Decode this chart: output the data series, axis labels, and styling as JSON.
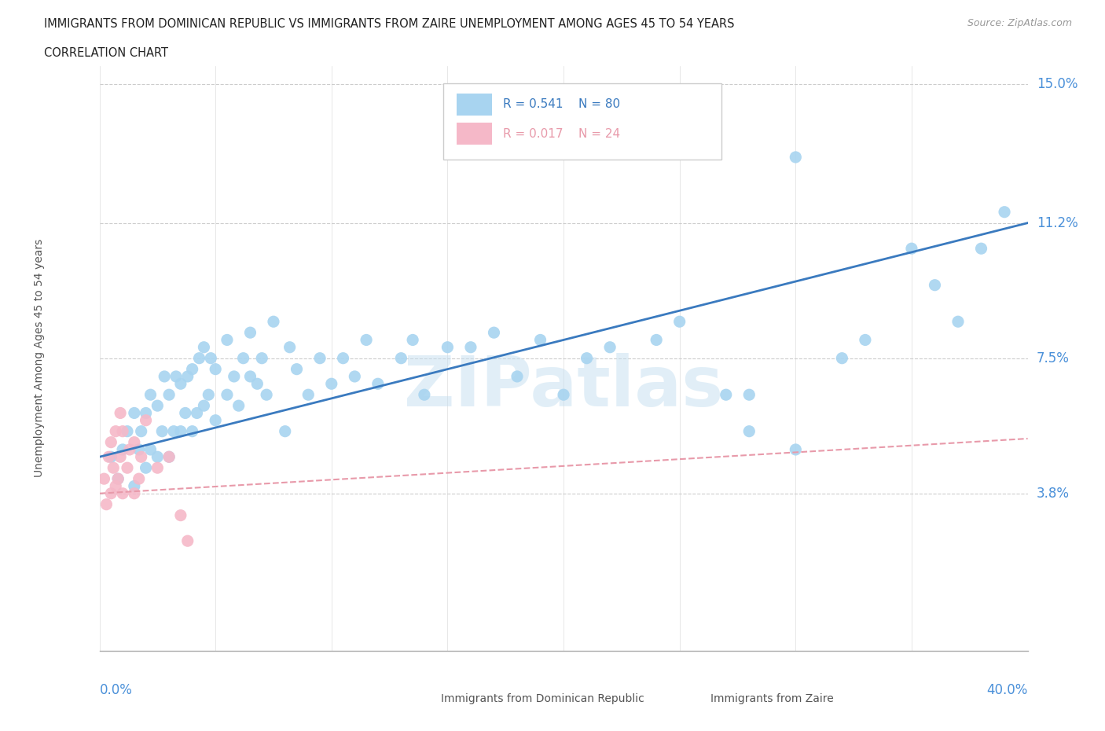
{
  "title_line1": "IMMIGRANTS FROM DOMINICAN REPUBLIC VS IMMIGRANTS FROM ZAIRE UNEMPLOYMENT AMONG AGES 45 TO 54 YEARS",
  "title_line2": "CORRELATION CHART",
  "source": "Source: ZipAtlas.com",
  "ylabel": "Unemployment Among Ages 45 to 54 years",
  "xlim": [
    0.0,
    0.4
  ],
  "ylim": [
    -0.005,
    0.155
  ],
  "ytick_values": [
    0.038,
    0.075,
    0.112,
    0.15
  ],
  "ytick_labels": [
    "3.8%",
    "7.5%",
    "11.2%",
    "15.0%"
  ],
  "blue_R": 0.541,
  "blue_N": 80,
  "pink_R": 0.017,
  "pink_N": 24,
  "blue_color": "#a8d4f0",
  "pink_color": "#f5b8c8",
  "blue_line_color": "#3a7abf",
  "pink_line_color": "#e89aaa",
  "label_color": "#4a90d9",
  "watermark": "ZIPatlas",
  "legend_label_blue": "Immigrants from Dominican Republic",
  "legend_label_pink": "Immigrants from Zaire",
  "blue_x": [
    0.005,
    0.008,
    0.01,
    0.012,
    0.015,
    0.015,
    0.017,
    0.018,
    0.02,
    0.02,
    0.022,
    0.022,
    0.025,
    0.025,
    0.027,
    0.028,
    0.03,
    0.03,
    0.032,
    0.033,
    0.035,
    0.035,
    0.037,
    0.038,
    0.04,
    0.04,
    0.042,
    0.043,
    0.045,
    0.045,
    0.047,
    0.048,
    0.05,
    0.05,
    0.055,
    0.055,
    0.058,
    0.06,
    0.062,
    0.065,
    0.065,
    0.068,
    0.07,
    0.072,
    0.075,
    0.08,
    0.082,
    0.085,
    0.09,
    0.095,
    0.1,
    0.105,
    0.11,
    0.115,
    0.12,
    0.13,
    0.135,
    0.14,
    0.15,
    0.16,
    0.17,
    0.18,
    0.19,
    0.2,
    0.21,
    0.22,
    0.24,
    0.25,
    0.27,
    0.28,
    0.3,
    0.32,
    0.33,
    0.35,
    0.36,
    0.37,
    0.38,
    0.39,
    0.3,
    0.28
  ],
  "blue_y": [
    0.048,
    0.042,
    0.05,
    0.055,
    0.04,
    0.06,
    0.05,
    0.055,
    0.045,
    0.06,
    0.05,
    0.065,
    0.048,
    0.062,
    0.055,
    0.07,
    0.048,
    0.065,
    0.055,
    0.07,
    0.055,
    0.068,
    0.06,
    0.07,
    0.055,
    0.072,
    0.06,
    0.075,
    0.062,
    0.078,
    0.065,
    0.075,
    0.058,
    0.072,
    0.065,
    0.08,
    0.07,
    0.062,
    0.075,
    0.07,
    0.082,
    0.068,
    0.075,
    0.065,
    0.085,
    0.055,
    0.078,
    0.072,
    0.065,
    0.075,
    0.068,
    0.075,
    0.07,
    0.08,
    0.068,
    0.075,
    0.08,
    0.065,
    0.078,
    0.078,
    0.082,
    0.07,
    0.08,
    0.065,
    0.075,
    0.078,
    0.08,
    0.085,
    0.065,
    0.055,
    0.05,
    0.075,
    0.08,
    0.105,
    0.095,
    0.085,
    0.105,
    0.115,
    0.13,
    0.065
  ],
  "pink_x": [
    0.002,
    0.003,
    0.004,
    0.005,
    0.005,
    0.006,
    0.007,
    0.007,
    0.008,
    0.009,
    0.009,
    0.01,
    0.01,
    0.012,
    0.013,
    0.015,
    0.015,
    0.017,
    0.018,
    0.02,
    0.025,
    0.03,
    0.035,
    0.038
  ],
  "pink_y": [
    0.042,
    0.035,
    0.048,
    0.038,
    0.052,
    0.045,
    0.04,
    0.055,
    0.042,
    0.048,
    0.06,
    0.038,
    0.055,
    0.045,
    0.05,
    0.038,
    0.052,
    0.042,
    0.048,
    0.058,
    0.045,
    0.048,
    0.032,
    0.025
  ]
}
